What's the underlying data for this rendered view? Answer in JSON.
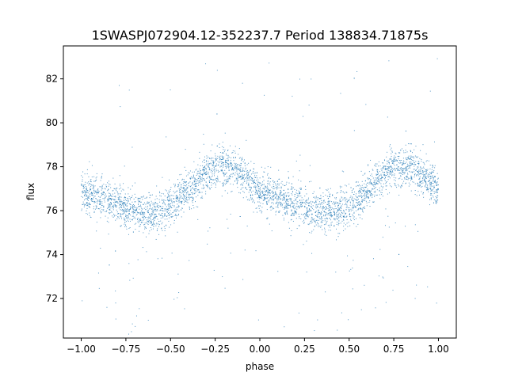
{
  "chart_data": {
    "type": "scatter",
    "title": "1SWASPJ072904.12-352237.7 Period 138834.71875s",
    "xlabel": "phase",
    "ylabel": "flux",
    "xlim": [
      -1.1,
      1.1
    ],
    "ylim": [
      70.2,
      83.5
    ],
    "x_ticks": [
      -1.0,
      -0.75,
      -0.5,
      -0.25,
      0.0,
      0.25,
      0.5,
      0.75,
      1.0
    ],
    "x_tick_labels": [
      "−1.00",
      "−0.75",
      "−0.50",
      "−0.25",
      "0.00",
      "0.25",
      "0.50",
      "0.75",
      "1.00"
    ],
    "y_ticks": [
      72,
      74,
      76,
      78,
      80,
      82
    ],
    "y_tick_labels": [
      "72",
      "74",
      "76",
      "78",
      "80",
      "82"
    ],
    "grid": false,
    "marker_color": "#1f77b4",
    "series": [
      {
        "curve": {
          "phase": [
            -1.0,
            -0.9,
            -0.8,
            -0.7,
            -0.6,
            -0.5,
            -0.4,
            -0.3,
            -0.22,
            -0.15,
            -0.05,
            0.0,
            0.1,
            0.2,
            0.3,
            0.4,
            0.5,
            0.6,
            0.7,
            0.78,
            0.85,
            0.95,
            1.0
          ],
          "flux": [
            76.9,
            76.6,
            76.3,
            76.0,
            75.9,
            76.2,
            76.9,
            77.7,
            78.1,
            77.9,
            77.3,
            76.9,
            76.6,
            76.3,
            76.0,
            75.9,
            76.2,
            76.9,
            77.7,
            78.1,
            77.9,
            77.3,
            76.9
          ]
        },
        "scatter_sigma": 0.45,
        "n_points": 4200,
        "outlier_fraction": 0.03
      }
    ]
  }
}
